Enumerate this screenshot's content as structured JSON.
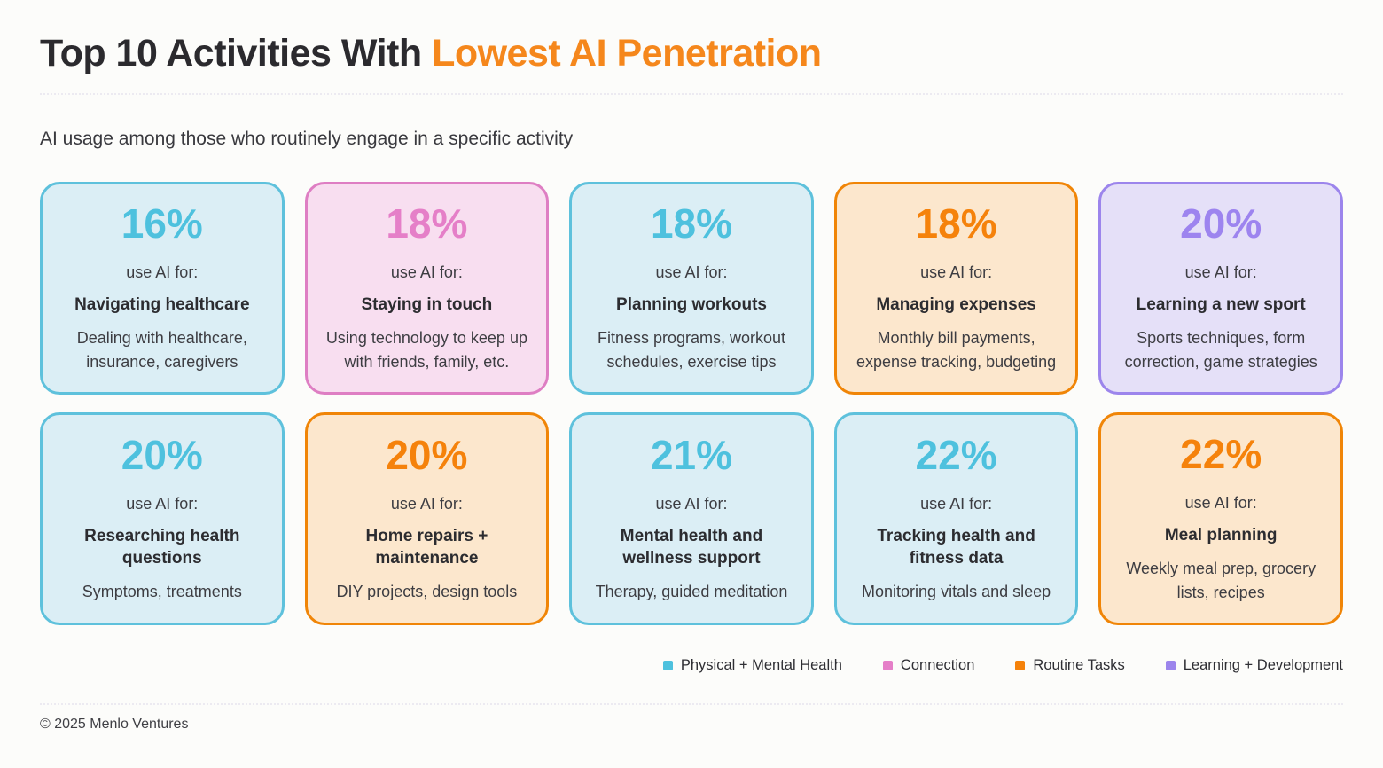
{
  "title": {
    "prefix": "Top 10 Activities With ",
    "highlight": "Lowest AI Penetration"
  },
  "subtitle": "AI usage among those who routinely engage in a specific activity",
  "labels": {
    "use_ai_for": "use AI for:"
  },
  "chart_data": {
    "type": "table",
    "title": "Top 10 Activities With Lowest AI Penetration",
    "subtitle": "AI usage among those who routinely engage in a specific activity",
    "categories": [
      "Navigating healthcare",
      "Staying in touch",
      "Planning workouts",
      "Managing expenses",
      "Learning a new sport",
      "Researching health questions",
      "Home repairs + maintenance",
      "Mental health and wellness support",
      "Tracking health and fitness data",
      "Meal planning"
    ],
    "values": [
      16,
      18,
      18,
      18,
      20,
      20,
      20,
      21,
      22,
      22
    ],
    "units": "%",
    "legend_position": "bottom-right"
  },
  "cards": [
    {
      "pct": "16%",
      "activity": "Navigating healthcare",
      "desc": "Dealing with healthcare, insurance, caregivers",
      "category": "health"
    },
    {
      "pct": "18%",
      "activity": "Staying in touch",
      "desc": "Using technology to keep up with friends, family, etc.",
      "category": "connection"
    },
    {
      "pct": "18%",
      "activity": "Planning workouts",
      "desc": "Fitness programs, workout schedules, exercise tips",
      "category": "health"
    },
    {
      "pct": "18%",
      "activity": "Managing expenses",
      "desc": "Monthly bill payments, expense tracking, budgeting",
      "category": "routine"
    },
    {
      "pct": "20%",
      "activity": "Learning a new sport",
      "desc": "Sports techniques, form correction, game strategies",
      "category": "learning"
    },
    {
      "pct": "20%",
      "activity": "Researching health questions",
      "desc": "Symptoms, treatments",
      "category": "health"
    },
    {
      "pct": "20%",
      "activity": "Home repairs + maintenance",
      "desc": "DIY projects, design tools",
      "category": "routine"
    },
    {
      "pct": "21%",
      "activity": "Mental health and wellness support",
      "desc": "Therapy, guided meditation",
      "category": "health"
    },
    {
      "pct": "22%",
      "activity": "Tracking health and fitness data",
      "desc": "Monitoring vitals and sleep",
      "category": "health"
    },
    {
      "pct": "22%",
      "activity": "Meal planning",
      "desc": "Weekly meal prep, grocery lists, recipes",
      "category": "routine"
    }
  ],
  "legend": [
    {
      "label": "Physical + Mental Health",
      "color": "#4ec1de",
      "key": "health"
    },
    {
      "label": "Connection",
      "color": "#e57fc8",
      "key": "connection"
    },
    {
      "label": "Routine Tasks",
      "color": "#f5820b",
      "key": "routine"
    },
    {
      "label": "Learning + Development",
      "color": "#9c85ec",
      "key": "learning"
    }
  ],
  "palette": {
    "title_accent": "#f5871c",
    "health_bg": "#dbeef5",
    "health_border": "#5ec1dc",
    "connection_bg": "#f8def0",
    "connection_border": "#de7ec3",
    "routine_bg": "#fce7cd",
    "routine_border": "#f08507",
    "learning_bg": "#e5e0f8",
    "learning_border": "#9c85ec"
  },
  "footer": {
    "copyright": "© 2025 Menlo Ventures"
  }
}
